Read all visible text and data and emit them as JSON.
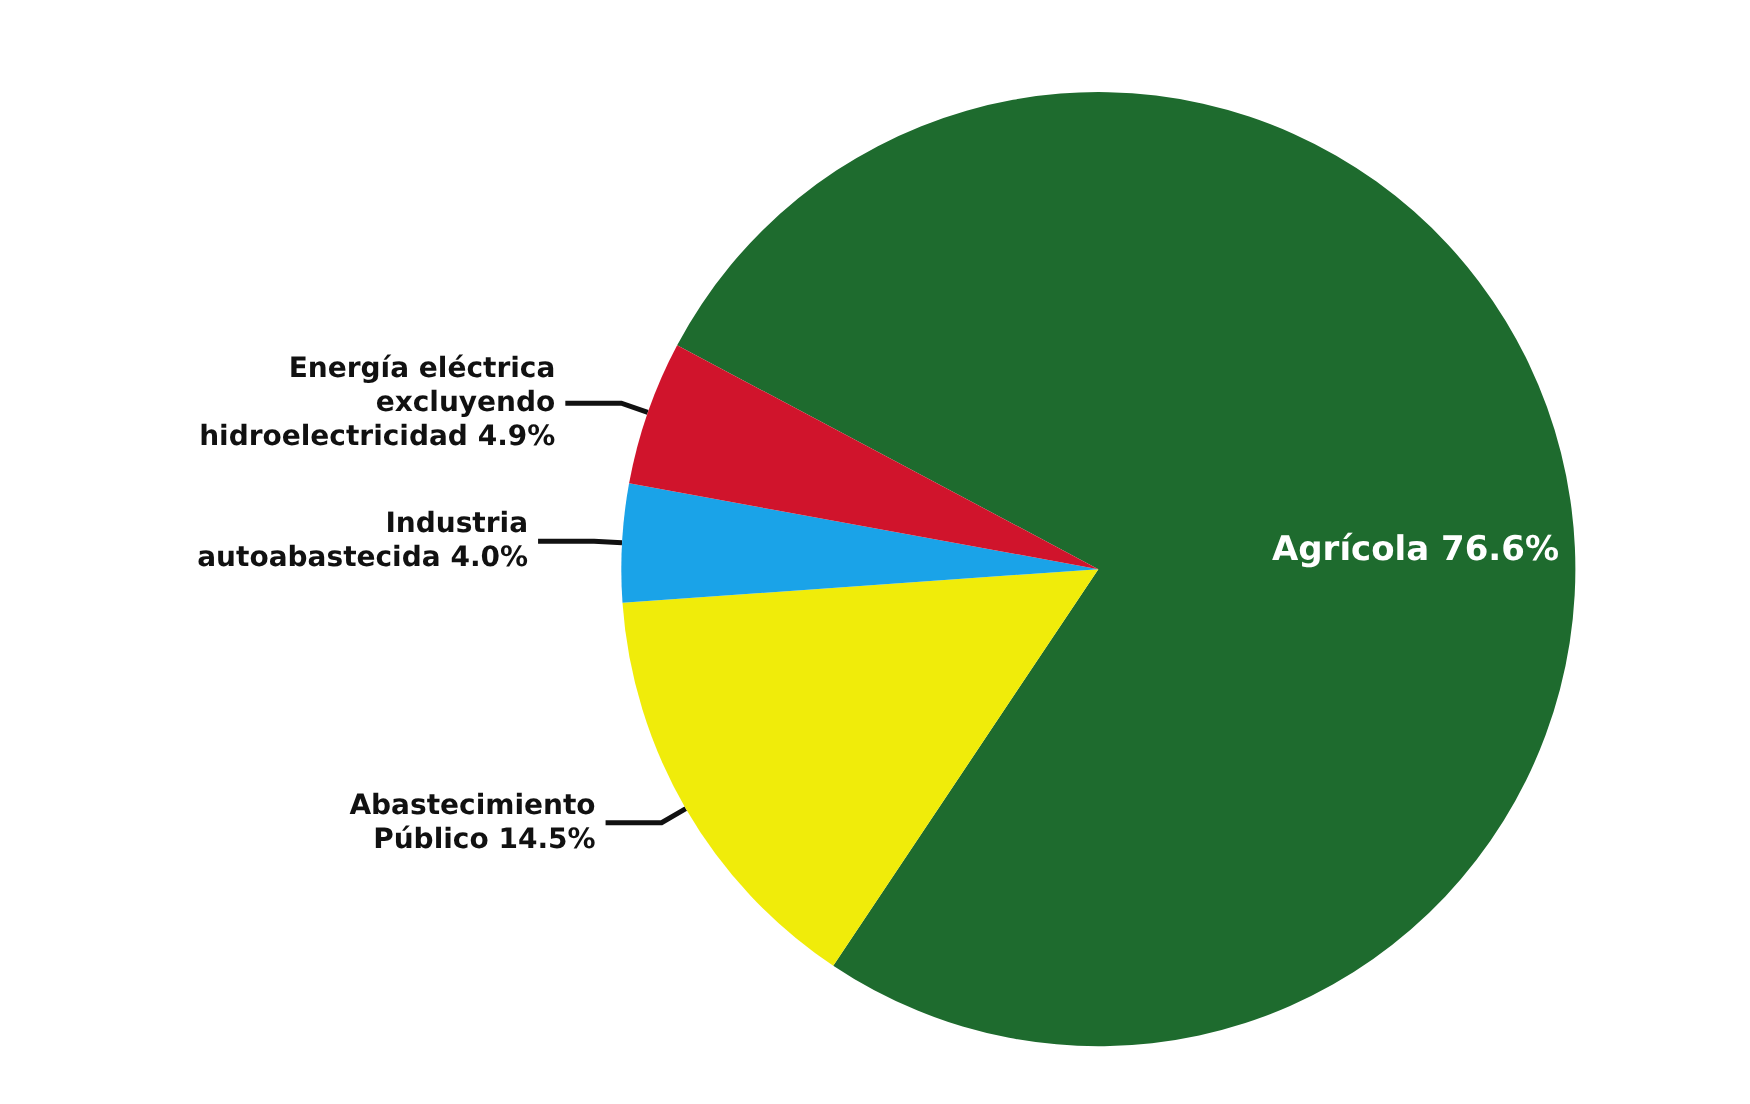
{
  "chart_data": {
    "type": "pie",
    "categories": [
      "Agrícola",
      "Abastecimiento\nPúblico",
      "Industria\nautoabastecida",
      "Energía eléctrica\nexcluyendo\nhidroelectricidad"
    ],
    "values": [
      76.6,
      14.5,
      4.0,
      4.9
    ],
    "value_labels": [
      "76.6%",
      "14.5%",
      "4.0%",
      "4.9%"
    ],
    "colors": [
      "#1e6b2e",
      "#f0ec0a",
      "#1aa3e8",
      "#d0142c"
    ],
    "legend": false
  }
}
